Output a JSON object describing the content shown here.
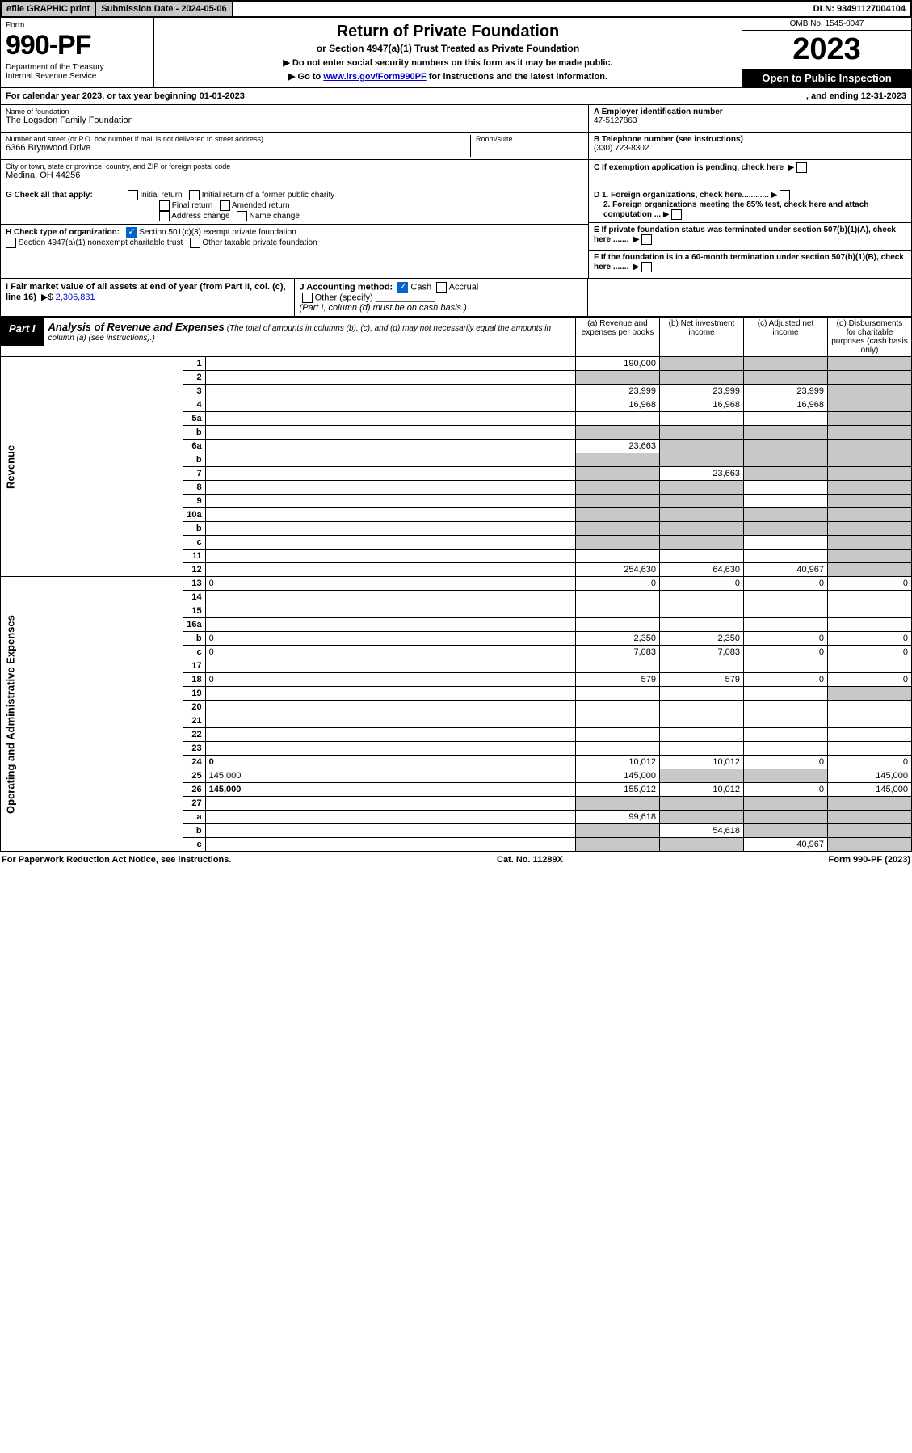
{
  "topbar": {
    "efile": "efile GRAPHIC print",
    "subdate_label": "Submission Date - 2024-05-06",
    "dln": "DLN: 93491127004104"
  },
  "header": {
    "form_label": "Form",
    "form_number": "990-PF",
    "dept": "Department of the Treasury",
    "irs": "Internal Revenue Service",
    "title": "Return of Private Foundation",
    "subtitle": "or Section 4947(a)(1) Trust Treated as Private Foundation",
    "note1": "▶ Do not enter social security numbers on this form as it may be made public.",
    "note2_pre": "▶ Go to ",
    "note2_link": "www.irs.gov/Form990PF",
    "note2_post": " for instructions and the latest information.",
    "omb": "OMB No. 1545-0047",
    "taxyear": "2023",
    "open": "Open to Public Inspection"
  },
  "calyear": {
    "left": "For calendar year 2023, or tax year beginning 01-01-2023",
    "right": ", and ending 12-31-2023"
  },
  "id": {
    "name_label": "Name of foundation",
    "name": "The Logsdon Family Foundation",
    "addr_label": "Number and street (or P.O. box number if mail is not delivered to street address)",
    "addr": "6366 Brynwood Drive",
    "room_label": "Room/suite",
    "city_label": "City or town, state or province, country, and ZIP or foreign postal code",
    "city": "Medina, OH  44256",
    "ein_label": "A Employer identification number",
    "ein": "47-5127863",
    "tel_label": "B Telephone number (see instructions)",
    "tel": "(330) 723-8302",
    "c_label": "C If exemption application is pending, check here",
    "d1": "D 1. Foreign organizations, check here............",
    "d2": "2. Foreign organizations meeting the 85% test, check here and attach computation ...",
    "e": "E  If private foundation status was terminated under section 507(b)(1)(A), check here .......",
    "f": "F  If the foundation is in a 60-month termination under section 507(b)(1)(B), check here .......",
    "g_label": "G Check all that apply:",
    "g_opts": [
      "Initial return",
      "Initial return of a former public charity",
      "Final return",
      "Amended return",
      "Address change",
      "Name change"
    ],
    "h_label": "H Check type of organization:",
    "h_opts": [
      "Section 501(c)(3) exempt private foundation",
      "Section 4947(a)(1) nonexempt charitable trust",
      "Other taxable private foundation"
    ],
    "i_label": "I Fair market value of all assets at end of year (from Part II, col. (c), line 16)",
    "i_value": "2,306,831",
    "j_label": "J Accounting method:",
    "j_opts": [
      "Cash",
      "Accrual",
      "Other (specify)"
    ],
    "j_note": "(Part I, column (d) must be on cash basis.)"
  },
  "part1": {
    "tab": "Part I",
    "title": "Analysis of Revenue and Expenses",
    "note": "(The total of amounts in columns (b), (c), and (d) may not necessarily equal the amounts in column (a) (see instructions).)",
    "col_a": "(a)   Revenue and expenses per books",
    "col_b": "(b)   Net investment income",
    "col_c": "(c)   Adjusted net income",
    "col_d": "(d)   Disbursements for charitable purposes (cash basis only)",
    "side_rev": "Revenue",
    "side_exp": "Operating and Administrative Expenses"
  },
  "rows": [
    {
      "n": "1",
      "d": "",
      "a": "190,000",
      "b": "",
      "c": "",
      "sb": true,
      "sc": true,
      "sd": true
    },
    {
      "n": "2",
      "d": "",
      "a": "",
      "b": "",
      "c": "",
      "sa": true,
      "sb": true,
      "sc": true,
      "sd": true
    },
    {
      "n": "3",
      "d": "",
      "a": "23,999",
      "b": "23,999",
      "c": "23,999",
      "sd": true
    },
    {
      "n": "4",
      "d": "",
      "a": "16,968",
      "b": "16,968",
      "c": "16,968",
      "sd": true
    },
    {
      "n": "5a",
      "d": "",
      "a": "",
      "b": "",
      "c": "",
      "sd": true
    },
    {
      "n": "b",
      "d": "",
      "a": "",
      "b": "",
      "c": "",
      "sa": true,
      "sb": true,
      "sc": true,
      "sd": true
    },
    {
      "n": "6a",
      "d": "",
      "a": "23,663",
      "b": "",
      "c": "",
      "sb": true,
      "sc": true,
      "sd": true
    },
    {
      "n": "b",
      "d": "",
      "a": "",
      "b": "",
      "c": "",
      "sa": true,
      "sb": true,
      "sc": true,
      "sd": true
    },
    {
      "n": "7",
      "d": "",
      "a": "",
      "b": "23,663",
      "c": "",
      "sa": true,
      "sc": true,
      "sd": true
    },
    {
      "n": "8",
      "d": "",
      "a": "",
      "b": "",
      "c": "",
      "sa": true,
      "sb": true,
      "sd": true
    },
    {
      "n": "9",
      "d": "",
      "a": "",
      "b": "",
      "c": "",
      "sa": true,
      "sb": true,
      "sd": true
    },
    {
      "n": "10a",
      "d": "",
      "a": "",
      "b": "",
      "c": "",
      "sa": true,
      "sb": true,
      "sc": true,
      "sd": true
    },
    {
      "n": "b",
      "d": "",
      "a": "",
      "b": "",
      "c": "",
      "sa": true,
      "sb": true,
      "sc": true,
      "sd": true
    },
    {
      "n": "c",
      "d": "",
      "a": "",
      "b": "",
      "c": "",
      "sa": true,
      "sb": true,
      "sd": true
    },
    {
      "n": "11",
      "d": "",
      "a": "",
      "b": "",
      "c": "",
      "sd": true
    },
    {
      "n": "12",
      "d": "",
      "a": "254,630",
      "b": "64,630",
      "c": "40,967",
      "bold": true,
      "sd": true
    },
    {
      "n": "13",
      "d": "0",
      "a": "0",
      "b": "0",
      "c": "0"
    },
    {
      "n": "14",
      "d": "",
      "a": "",
      "b": "",
      "c": ""
    },
    {
      "n": "15",
      "d": "",
      "a": "",
      "b": "",
      "c": ""
    },
    {
      "n": "16a",
      "d": "",
      "a": "",
      "b": "",
      "c": ""
    },
    {
      "n": "b",
      "d": "0",
      "a": "2,350",
      "b": "2,350",
      "c": "0"
    },
    {
      "n": "c",
      "d": "0",
      "a": "7,083",
      "b": "7,083",
      "c": "0"
    },
    {
      "n": "17",
      "d": "",
      "a": "",
      "b": "",
      "c": ""
    },
    {
      "n": "18",
      "d": "0",
      "a": "579",
      "b": "579",
      "c": "0"
    },
    {
      "n": "19",
      "d": "",
      "a": "",
      "b": "",
      "c": "",
      "sd": true
    },
    {
      "n": "20",
      "d": "",
      "a": "",
      "b": "",
      "c": ""
    },
    {
      "n": "21",
      "d": "",
      "a": "",
      "b": "",
      "c": ""
    },
    {
      "n": "22",
      "d": "",
      "a": "",
      "b": "",
      "c": ""
    },
    {
      "n": "23",
      "d": "",
      "a": "",
      "b": "",
      "c": ""
    },
    {
      "n": "24",
      "d": "0",
      "a": "10,012",
      "b": "10,012",
      "c": "0",
      "bold": true
    },
    {
      "n": "25",
      "d": "145,000",
      "a": "145,000",
      "b": "",
      "c": "",
      "sb": true,
      "sc": true
    },
    {
      "n": "26",
      "d": "145,000",
      "a": "155,012",
      "b": "10,012",
      "c": "0",
      "bold": true
    },
    {
      "n": "27",
      "d": "",
      "a": "",
      "b": "",
      "c": "",
      "sa": true,
      "sb": true,
      "sc": true,
      "sd": true
    },
    {
      "n": "a",
      "d": "",
      "a": "99,618",
      "b": "",
      "c": "",
      "bold": true,
      "sb": true,
      "sc": true,
      "sd": true
    },
    {
      "n": "b",
      "d": "",
      "a": "",
      "b": "54,618",
      "c": "",
      "bold": true,
      "sa": true,
      "sc": true,
      "sd": true
    },
    {
      "n": "c",
      "d": "",
      "a": "",
      "b": "",
      "c": "40,967",
      "bold": true,
      "sa": true,
      "sb": true,
      "sd": true
    }
  ],
  "footer": {
    "left": "For Paperwork Reduction Act Notice, see instructions.",
    "mid": "Cat. No. 11289X",
    "right": "Form 990-PF (2023)"
  }
}
